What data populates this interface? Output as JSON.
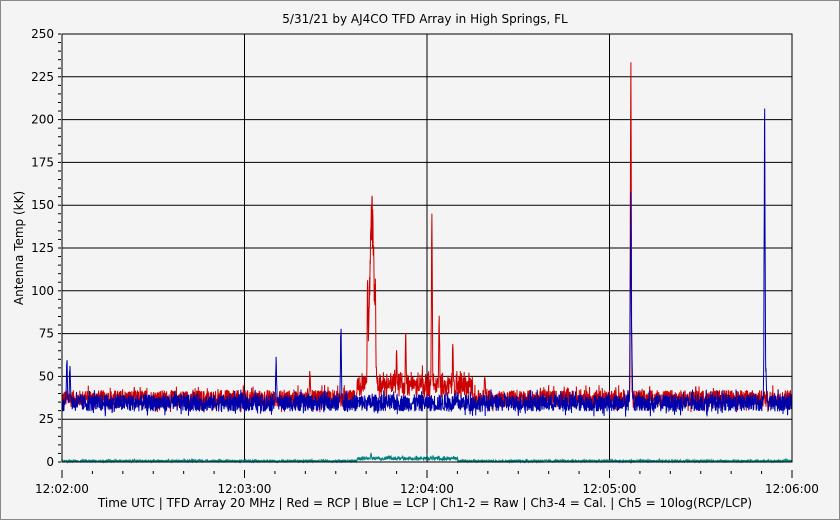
{
  "chart_data": {
    "type": "line",
    "title": "5/31/21  by  AJ4CO TFD Array  in  High Springs, FL",
    "xlabel": "Time UTC | TFD Array 20 MHz | Red = RCP | Blue = LCP | Ch1-2 = Raw | Ch3-4 = Cal. | Ch5 = 10log(RCP/LCP)",
    "ylabel": "Antenna Temp (kK)",
    "xlim_seconds": [
      0,
      240
    ],
    "x_start": "12:02:00",
    "xticks": [
      "12:02:00",
      "12:03:00",
      "12:04:00",
      "12:05:00",
      "12:06:00"
    ],
    "ylim": [
      0,
      250
    ],
    "yticks": [
      "0",
      "25",
      "50",
      "75",
      "100",
      "125",
      "150",
      "175",
      "200",
      "225",
      "250"
    ],
    "grid": true,
    "series": [
      {
        "name": "RCP",
        "color": "#cc0000",
        "baseline": 37,
        "noise": 5,
        "peaks": [
          [
            81.5,
            55
          ],
          [
            100.5,
            120
          ],
          [
            101.9,
            158
          ],
          [
            103,
            110
          ],
          [
            110,
            67
          ],
          [
            113,
            77
          ],
          [
            121.6,
            150
          ],
          [
            124,
            90
          ],
          [
            128.5,
            73
          ],
          [
            139,
            53
          ],
          [
            187,
            250
          ]
        ],
        "elevated": [
          [
            97,
            135,
            8
          ]
        ]
      },
      {
        "name": "LCP",
        "color": "#0000aa",
        "baseline": 34.5,
        "noise": 5,
        "peaks": [
          [
            1.6,
            63
          ],
          [
            2.6,
            60
          ],
          [
            70.4,
            62
          ],
          [
            91.7,
            83
          ],
          [
            187,
            175
          ],
          [
            187.3,
            78
          ],
          [
            231,
            221
          ],
          [
            231.4,
            56
          ]
        ],
        "elevated": []
      },
      {
        "name": "Ch5 10log(RCP/LCP)",
        "color": "#008080",
        "baseline": 0.6,
        "noise": 0.6,
        "peaks": [
          [
            101.6,
            6
          ],
          [
            108,
            3
          ],
          [
            112,
            3.5
          ],
          [
            120,
            5
          ],
          [
            122,
            4
          ],
          [
            128,
            3
          ]
        ],
        "elevated": [
          [
            97,
            130,
            1.5
          ]
        ]
      }
    ]
  }
}
